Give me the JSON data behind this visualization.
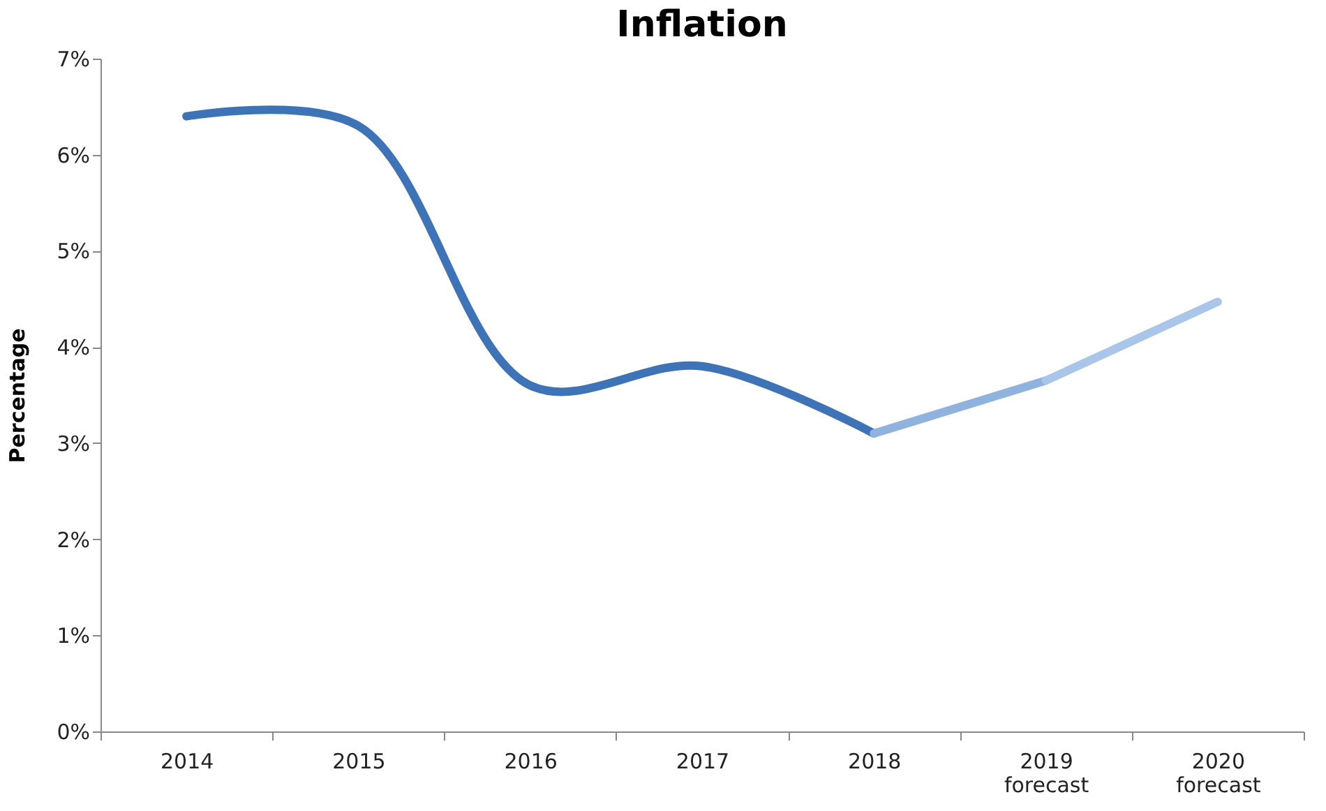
{
  "chart_data": {
    "type": "line",
    "title": "Inflation",
    "ylabel": "Percentage",
    "categories": [
      "2014",
      "2015",
      "2016",
      "2017",
      "2018",
      "2019\nforecast",
      "2020\nforecast"
    ],
    "series": [
      {
        "color": "#3f73b8",
        "values": [
          6.4,
          6.3,
          3.6,
          3.8,
          3.1,
          null,
          null
        ]
      },
      {
        "color": "#8fb2df",
        "values": [
          null,
          null,
          null,
          null,
          3.1,
          3.65,
          null
        ]
      },
      {
        "color": "#a9c5ea",
        "values": [
          null,
          null,
          null,
          null,
          null,
          3.65,
          4.47
        ]
      }
    ],
    "ylim": [
      0,
      7
    ],
    "yticks": [
      {
        "value": 0,
        "label": "0%"
      },
      {
        "value": 1,
        "label": "1%"
      },
      {
        "value": 2,
        "label": "2%"
      },
      {
        "value": 3,
        "label": "3%"
      },
      {
        "value": 4,
        "label": "4%"
      },
      {
        "value": 5,
        "label": "5%"
      },
      {
        "value": 6,
        "label": "6%"
      },
      {
        "value": 7,
        "label": "7%"
      }
    ],
    "grid": false,
    "marker": "none",
    "line_style": "solid"
  }
}
